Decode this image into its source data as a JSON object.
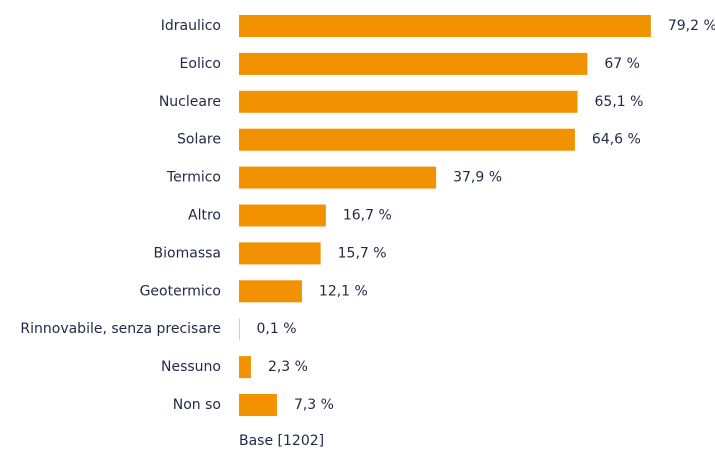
{
  "chart_data": {
    "type": "barh",
    "color": "#f39200",
    "categories": [
      "Idraulico",
      "Eolico",
      "Nucleare",
      "Solare",
      "Termico",
      "Altro",
      "Biomassa",
      "Geotermico",
      "Rinnovabile, senza precisare",
      "Nessuno",
      "Non so"
    ],
    "values": [
      79.2,
      67,
      65.1,
      64.6,
      37.9,
      16.7,
      15.7,
      12.1,
      0.1,
      2.3,
      7.3
    ],
    "value_labels": [
      "79,2 %",
      "67 %",
      "65,1 %",
      "64,6 %",
      "37,9 %",
      "16,7 %",
      "15,7 %",
      "12,1 %",
      "0,1 %",
      "2,3 %",
      "7,3 %"
    ],
    "note": "Base [1202]"
  }
}
